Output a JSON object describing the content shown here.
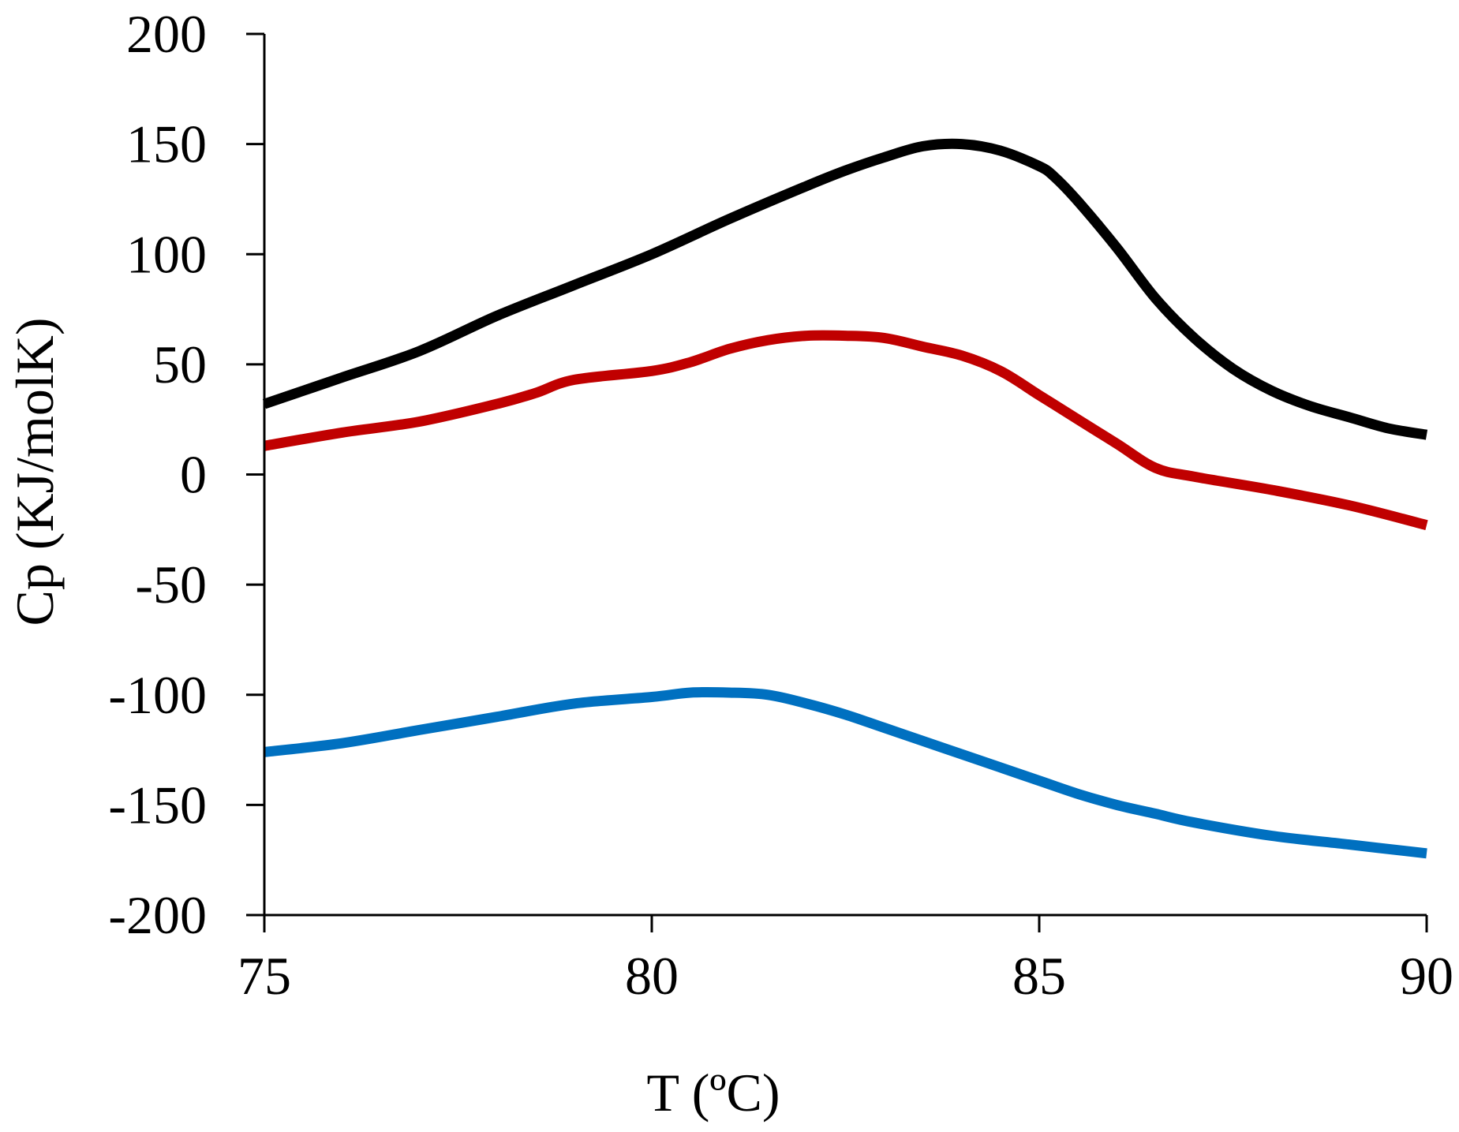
{
  "chart_data": {
    "type": "line",
    "title": "",
    "xlabel": "T (ºC)",
    "ylabel": "Cp (KJ/molK)",
    "xlim": [
      75,
      90
    ],
    "ylim": [
      -200,
      200
    ],
    "xticks": [
      75,
      80,
      85,
      90
    ],
    "yticks": [
      200,
      150,
      100,
      50,
      0,
      -50,
      -100,
      -150,
      -200
    ],
    "grid": false,
    "legend": "none",
    "series": [
      {
        "name": "black",
        "color": "#000000",
        "x": [
          75,
          76,
          77,
          78,
          79,
          80,
          81,
          82,
          82.5,
          83,
          83.5,
          84,
          84.5,
          85,
          85.2,
          85.5,
          86,
          86.5,
          87,
          87.5,
          88,
          88.5,
          89,
          89.5,
          90
        ],
        "y": [
          32,
          44,
          56,
          72,
          86,
          100,
          116,
          131,
          138,
          144,
          149,
          150,
          147,
          140,
          135,
          124,
          103,
          80,
          62,
          48,
          38,
          31,
          26,
          21,
          18
        ]
      },
      {
        "name": "red",
        "color": "#c00000",
        "x": [
          75,
          76,
          77,
          78,
          78.5,
          79,
          80,
          80.5,
          81,
          81.5,
          82,
          82.5,
          83,
          83.5,
          84,
          84.5,
          85,
          85.5,
          86,
          86.5,
          87,
          88,
          89,
          90
        ],
        "y": [
          13,
          19,
          24,
          32,
          37,
          43,
          47,
          51,
          57,
          61,
          63,
          63,
          62,
          58,
          54,
          47,
          36,
          25,
          14,
          3,
          -1,
          -7,
          -14,
          -23
        ]
      },
      {
        "name": "blue",
        "color": "#0070c0",
        "x": [
          75,
          76,
          77,
          78,
          79,
          80,
          80.5,
          81,
          81.5,
          82,
          82.5,
          83,
          83.5,
          84,
          84.5,
          85,
          85.5,
          86,
          86.5,
          87,
          88,
          89,
          90
        ],
        "y": [
          -126,
          -122,
          -116,
          -110,
          -104,
          -101,
          -99,
          -99,
          -100,
          -104,
          -109,
          -115,
          -121,
          -127,
          -133,
          -139,
          -145,
          -150,
          -154,
          -158,
          -164,
          -168,
          -172
        ]
      }
    ]
  }
}
